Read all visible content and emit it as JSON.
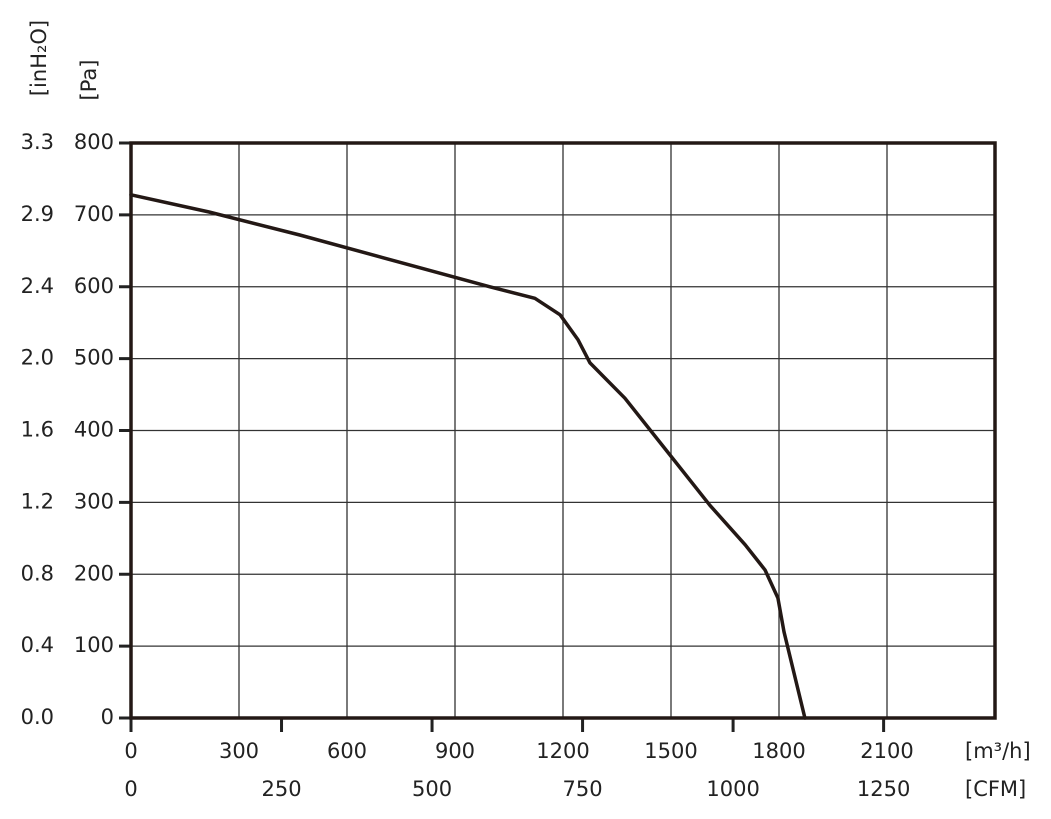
{
  "chart_data": {
    "type": "line",
    "y_axis_label": "[Pa]",
    "y2_axis_label": "[inH₂O]",
    "x_axis_label": "[m³/h]",
    "x2_axis_label": "[CFM]",
    "xlim": [
      0,
      2400
    ],
    "xticks": [
      0,
      300,
      600,
      900,
      1200,
      1500,
      1800,
      2100
    ],
    "x2lim": [
      0,
      1435
    ],
    "x2ticks": [
      0,
      250,
      500,
      750,
      1000,
      1250
    ],
    "ylim": [
      0,
      800
    ],
    "yticks": [
      0,
      100,
      200,
      300,
      400,
      500,
      600,
      700,
      800
    ],
    "y2tick_labels": [
      "0.0",
      "0.4",
      "0.8",
      "1.2",
      "1.6",
      "2.0",
      "2.4",
      "2.9",
      "3.3"
    ],
    "grid": true,
    "series": [
      {
        "color": "#231815",
        "x": [
          0,
          217,
          469,
          747,
          997,
          1122,
          1192,
          1242,
          1275,
          1372,
          1497,
          1608,
          1706,
          1761,
          1797,
          1814,
          1872
        ],
        "values": [
          728,
          704,
          672,
          634,
          600,
          584,
          561,
          526,
          494,
          445,
          366,
          296,
          241,
          206,
          167,
          120,
          0
        ]
      }
    ]
  }
}
